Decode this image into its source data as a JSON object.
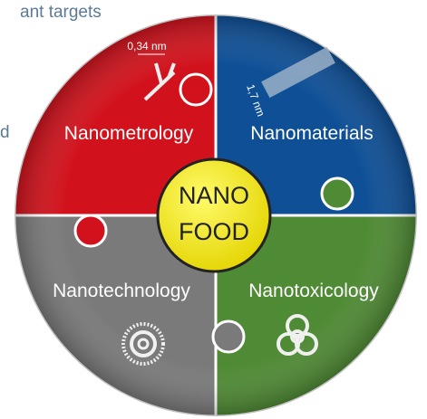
{
  "context_text": {
    "top": "ant targets",
    "left": "d"
  },
  "annotations": {
    "scale_a": "0,34 nm",
    "scale_b": "1,7 nm"
  },
  "quadrants": [
    {
      "label": "Nanometrology"
    },
    {
      "label": "Nanomaterials"
    },
    {
      "label": "Nanotoxicology"
    },
    {
      "label": "Nanotechnology"
    }
  ],
  "center": {
    "line1": "NANO",
    "line2": "FOOD"
  }
}
